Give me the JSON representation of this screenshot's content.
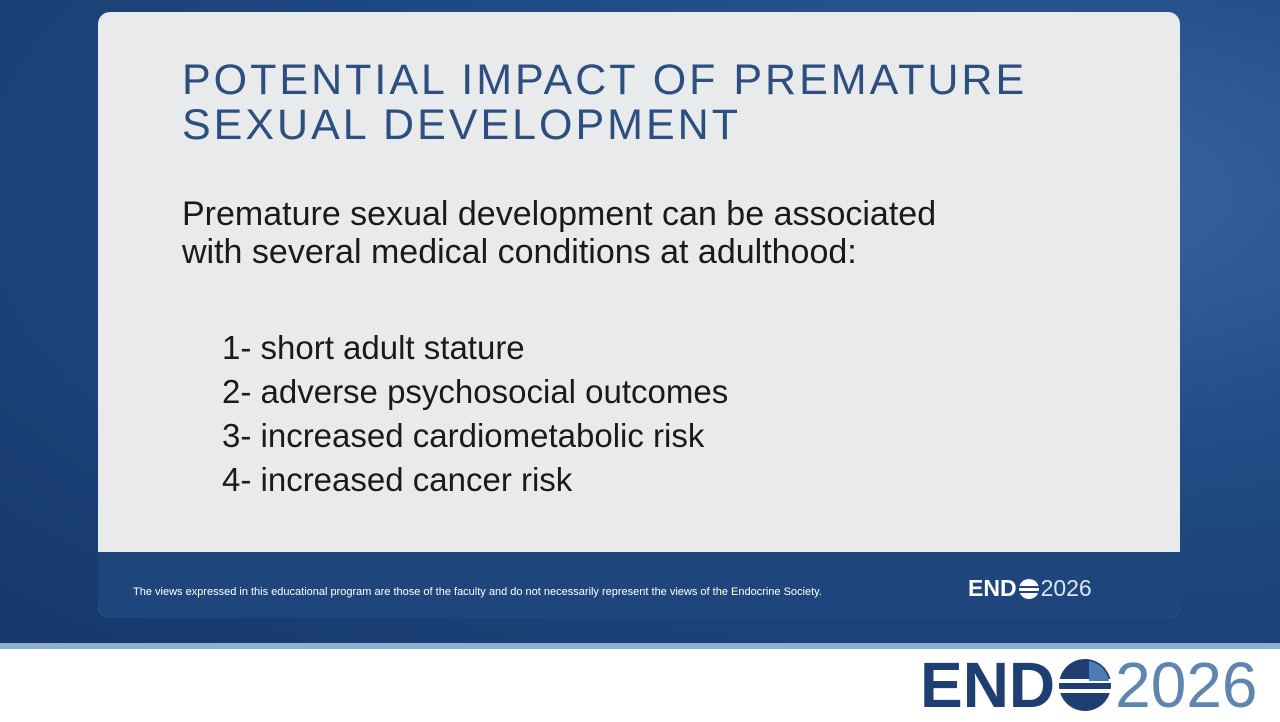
{
  "slide": {
    "title": [
      "POTENTIAL IMPACT OF PREMATURE",
      "SEXUAL DEVELOPMENT"
    ],
    "intro": [
      "Premature sexual development can be associated",
      "with several medical conditions at adulthood:"
    ],
    "items": [
      "1- short adult stature",
      "2- adverse psychosocial outcomes",
      "3- increased cardiometabolic risk",
      "4- increased cancer risk"
    ],
    "disclaimer": "The views expressed in this educational program are those of the faculty and do not necessarily represent the views of the Endocrine Society.",
    "logo": {
      "left": "END",
      "right": "2026"
    }
  },
  "banner": {
    "logo": {
      "left": "END",
      "right": "2026"
    }
  }
}
